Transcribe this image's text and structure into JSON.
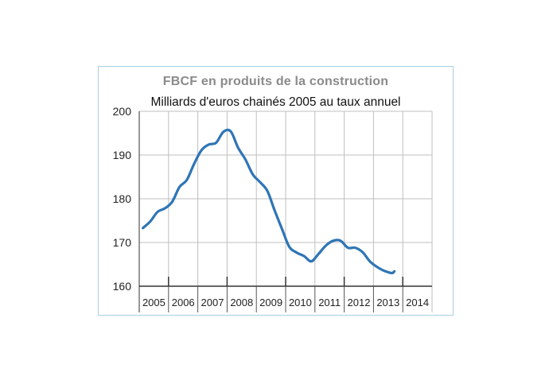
{
  "chart_data": {
    "type": "line",
    "title": "FBCF en produits de la construction",
    "subtitle": "Milliards d'euros chainés 2005 au taux annuel",
    "xlabel": "",
    "ylabel": "",
    "ylim": [
      160,
      200
    ],
    "yticks": [
      160,
      170,
      180,
      190,
      200
    ],
    "categories": [
      "2005",
      "2006",
      "2007",
      "2008",
      "2009",
      "2010",
      "2011",
      "2012",
      "2013",
      "2014"
    ],
    "grid": true,
    "line_color": "#2e75b6",
    "series": [
      {
        "name": "",
        "x": [
          "2005-T1",
          "2005-T2",
          "2005-T3",
          "2005-T4",
          "2006-T1",
          "2006-T2",
          "2006-T3",
          "2006-T4",
          "2007-T1",
          "2007-T2",
          "2007-T3",
          "2007-T4",
          "2008-T1",
          "2008-T2",
          "2008-T3",
          "2008-T4",
          "2009-T1",
          "2009-T2",
          "2009-T3",
          "2009-T4",
          "2010-T1",
          "2010-T2",
          "2010-T3",
          "2010-T4",
          "2011-T1",
          "2011-T2",
          "2011-T3",
          "2011-T4",
          "2012-T1",
          "2012-T2",
          "2012-T3",
          "2012-T4",
          "2013-T1",
          "2013-T2",
          "2013-T3"
        ],
        "values": [
          173.3,
          174.8,
          177.0,
          177.8,
          179.3,
          182.7,
          184.3,
          188.0,
          191.1,
          192.4,
          192.8,
          195.3,
          195.4,
          191.7,
          189.0,
          185.6,
          183.8,
          181.8,
          177.3,
          173.1,
          169.0,
          167.7,
          166.9,
          165.7,
          167.4,
          169.3,
          170.4,
          170.4,
          168.8,
          168.8,
          167.8,
          165.7,
          164.4,
          163.5,
          163.0
        ]
      }
    ]
  },
  "extra_point": {
    "x": "2013-T4",
    "value": 163.4
  }
}
